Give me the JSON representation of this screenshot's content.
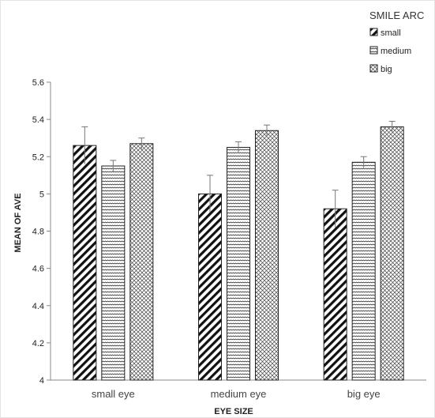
{
  "chart_data": {
    "type": "bar",
    "xlabel": "EYE SIZE",
    "ylabel": "MEAN OF AVE",
    "categories": [
      "small eye",
      "medium eye",
      "big eye"
    ],
    "ylim": [
      4,
      5.6
    ],
    "yticks": [
      "4",
      "4.2",
      "4.4",
      "4.6",
      "4.8",
      "5",
      "5.2",
      "5.4",
      "5.6"
    ],
    "legend": {
      "title": "SMILE ARC",
      "position": "top-right"
    },
    "grid": false,
    "series": [
      {
        "name": "small",
        "pattern": "diagonal-stripes",
        "values": [
          5.26,
          5.0,
          4.92
        ],
        "errors": [
          0.1,
          0.1,
          0.1
        ]
      },
      {
        "name": "medium",
        "pattern": "wavy-horizontal",
        "values": [
          5.15,
          5.25,
          5.17
        ],
        "errors": [
          0.03,
          0.03,
          0.03
        ]
      },
      {
        "name": "big",
        "pattern": "crosshatch",
        "values": [
          5.27,
          5.34,
          5.36
        ],
        "errors": [
          0.03,
          0.03,
          0.03
        ]
      }
    ]
  }
}
